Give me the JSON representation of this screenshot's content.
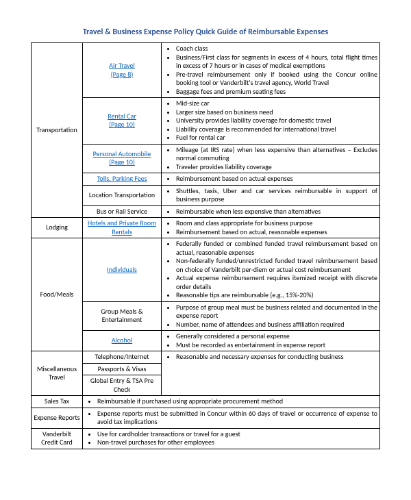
{
  "title": "Travel & Business Expense Policy Quick Guide of Reimbursable Expenses",
  "colors": {
    "title": "#2e5395",
    "link": "#0563c1",
    "border": "#000000",
    "text": "#000000",
    "background": "#ffffff"
  },
  "categories": {
    "transportation": "Transportation",
    "lodging": "Lodging",
    "food": "Food/Meals",
    "misc": "Miscellaneous Travel",
    "salestax": "Sales Tax",
    "expense": "Expense Reports",
    "card": "Vanderbilt Credit Card"
  },
  "subs": {
    "air": "Air Travel\n(Page 8)",
    "rental": "Rental Car\n(Page 10)",
    "auto": "Personal Automobile\n(Page 10)",
    "tolls": "Tolls, Parking Fees",
    "location": "Location Transportation",
    "bus": "Bus or Rail Service",
    "hotels": "Hotels and Private Room Rentals",
    "individuals": "Individuals",
    "groupmeals": "Group Meals & Entertainment",
    "alcohol": "Alcohol",
    "telephone": "Telephone/Internet",
    "passports": "Passports & Visas",
    "global": "Global Entry & TSA Pre Check"
  },
  "bullets": {
    "air": [
      "Coach class",
      "Business/First class for segments in excess of 4 hours, total flight times in excess of 7 hours or in cases of medical exemptions",
      "Pre-travel reimbursement only if booked using the Concur online booking tool or Vanderbilt's travel agency, World Travel",
      "Baggage fees and premium seating fees"
    ],
    "rental": [
      "Mid-size car",
      "Larger size based on business need",
      "University provides liability coverage for domestic travel",
      "Liability coverage is recommended for international travel",
      "Fuel for rental car"
    ],
    "auto": [
      "Mileage (at IRS rate) when less expensive than alternatives – Excludes normal commuting",
      "Traveler provides liability coverage"
    ],
    "tolls": [
      "Reimbursement based on actual expenses"
    ],
    "location": [
      "Shuttles, taxis, Uber and car services reimbursable in support of business purpose"
    ],
    "bus": [
      "Reimbursable when less expensive than alternatives"
    ],
    "hotels": [
      "Room and class appropriate for business purpose",
      "Reimbursement based on actual, reasonable expenses"
    ],
    "individuals": [
      "Federally funded or combined funded travel reimbursement based on actual, reasonable expenses",
      "Non-federally funded/unrestricted funded travel reimbursement based on choice of Vanderbilt per-diem or actual cost reimbursement",
      "Actual expense reimbursement requires itemized receipt with discrete order details",
      "Reasonable tips are reimbursable (e.g., 15%-20%)"
    ],
    "groupmeals": [
      "Purpose of group meal must be business related and documented in the expense report",
      "Number, name of attendees and business affiliation required"
    ],
    "alcohol": [
      "Generally considered a personal expense",
      "Must be recorded as entertainment in expense report"
    ],
    "misc": [
      "Reasonable and necessary expenses for conducting business"
    ],
    "salestax": [
      "Reimbursable if purchased using appropriate procurement method"
    ],
    "expense": [
      "Expense reports must be submitted in Concur within 60 days of travel or occurrence of expense to avoid tax implications"
    ],
    "card": [
      "Use for cardholder transactions or travel for a guest",
      "Non-travel purchases for other employees"
    ]
  }
}
